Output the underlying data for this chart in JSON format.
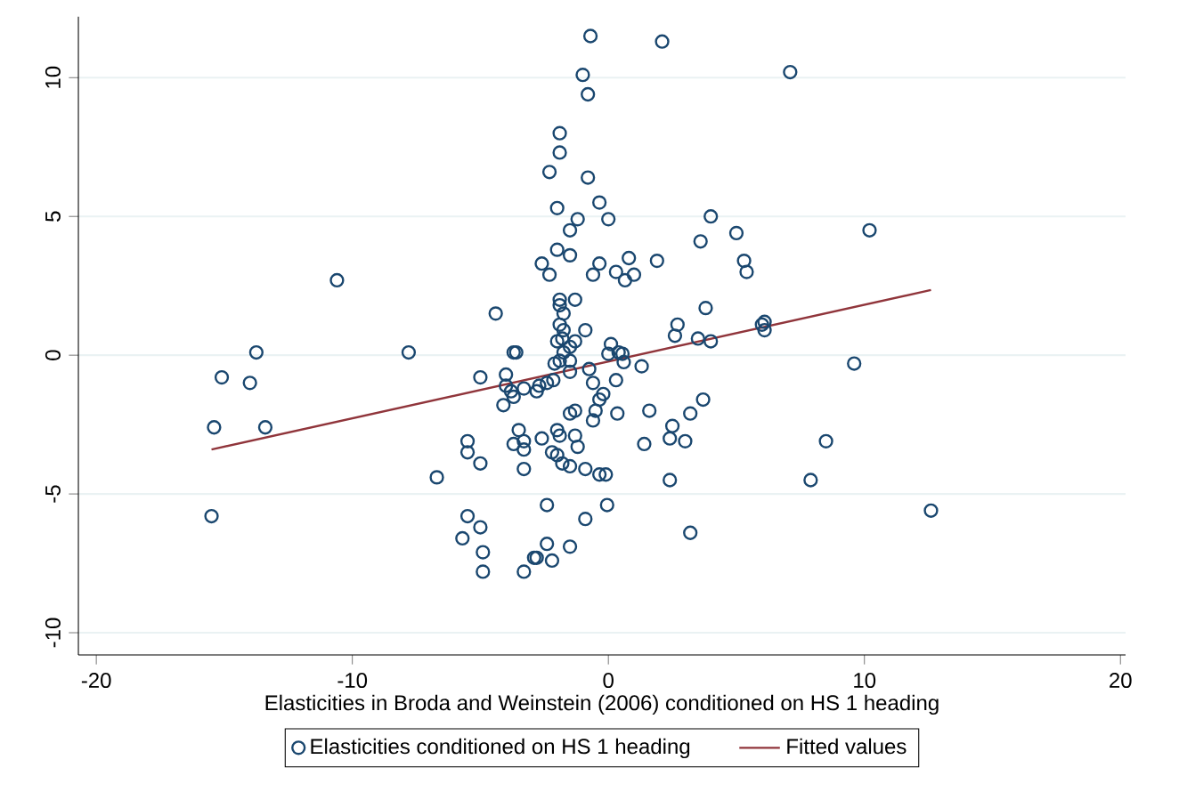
{
  "chart_data": {
    "type": "scatter",
    "xlabel": "Elasticities in Broda and Weinstein (2006) conditioned on HS 1 heading",
    "xlim": [
      -20.7,
      20.2
    ],
    "ylim": [
      -10.8,
      12.2
    ],
    "xticks": [
      -20,
      -10,
      0,
      10,
      20
    ],
    "yticks": [
      -10,
      -5,
      0,
      5,
      10
    ],
    "grid": "y",
    "legend": "bottom",
    "series": [
      {
        "name": "Elasticities conditioned on HS 1 heading",
        "color": "#1a476f",
        "marker": "circle",
        "x": [
          7.1,
          -0.7,
          2.1,
          -1.0,
          -0.8,
          -1.9,
          -1.9,
          -2.3,
          -0.8,
          -0.35,
          -2.0,
          0,
          -1.2,
          -1.5,
          4.0,
          5.0,
          3.6,
          10.2,
          -2.0,
          -1.5,
          -2.6,
          -0.35,
          0.8,
          1.9,
          -2.3,
          -0.6,
          0.3,
          1.0,
          0.65,
          5.3,
          5.4,
          -10.6,
          -4.4,
          -1.9,
          -1.3,
          -1.9,
          -1.75,
          3.8,
          6.0,
          6.1,
          6.1,
          -1.9,
          -1.75,
          -1.8,
          -1.3,
          -0.9,
          -1.5,
          2.7,
          2.6,
          3.5,
          4.0,
          0.1,
          0.4,
          0,
          -3.7,
          -7.8,
          -13.75,
          -15.1,
          -14.0,
          -15.4,
          -13.4,
          -15.5,
          -3.6,
          -5.0,
          -4.0,
          -4.0,
          -3.8,
          -3.7,
          -3.3,
          -4.1,
          -5.5,
          -5.5,
          -5.0,
          -6.7,
          -3.5,
          -3.3,
          -3.7,
          -3.3,
          -3.3,
          -5.5,
          -5.0,
          -5.7,
          -4.9,
          -4.9,
          -3.3,
          -2.9,
          -2.0,
          -1.75,
          -2.1,
          -1.9,
          -1.5,
          -1.5,
          -0.75,
          0.55,
          0.6,
          1.3,
          0.3,
          -0.6,
          -2.15,
          -2.7,
          -2.8,
          -2.4,
          -0.2,
          -0.35,
          -0.5,
          -0.6,
          -1.5,
          -1.3,
          0.35,
          1.6,
          3.2,
          3.7,
          2.5,
          2.4,
          3.0,
          1.4,
          -2.6,
          -2.0,
          -1.9,
          -1.3,
          -1.2,
          -2.2,
          -2.0,
          -1.8,
          -1.5,
          -0.9,
          -0.35,
          -0.1,
          2.4,
          7.9,
          -2.4,
          -0.05,
          -0.9,
          3.2,
          -2.4,
          -1.5,
          -2.8,
          -2.2,
          9.6,
          8.5,
          12.6
        ],
        "values": [
          10.2,
          11.5,
          11.3,
          10.1,
          9.4,
          8.0,
          7.3,
          6.6,
          6.4,
          5.5,
          5.3,
          4.9,
          4.9,
          4.5,
          5.0,
          4.4,
          4.1,
          4.5,
          3.8,
          3.6,
          3.3,
          3.3,
          3.5,
          3.4,
          2.9,
          2.9,
          3.0,
          2.9,
          2.7,
          3.4,
          3.0,
          2.7,
          1.5,
          2.0,
          2.0,
          1.8,
          1.5,
          1.7,
          1.1,
          0.9,
          1.2,
          1.1,
          0.9,
          0.6,
          0.5,
          0.9,
          0.3,
          1.1,
          0.7,
          0.6,
          0.5,
          0.4,
          0.1,
          0.05,
          0.1,
          0.1,
          0.1,
          -0.8,
          -1.0,
          -2.6,
          -2.6,
          -5.8,
          0.1,
          -0.8,
          -0.7,
          -1.1,
          -1.3,
          -1.5,
          -1.2,
          -1.8,
          -3.1,
          -3.5,
          -3.9,
          -4.4,
          -2.7,
          -3.1,
          -3.2,
          -3.4,
          -4.1,
          -5.8,
          -6.2,
          -6.6,
          -7.1,
          -7.8,
          -7.8,
          -7.3,
          0.5,
          0.1,
          -0.3,
          -0.2,
          -0.2,
          -0.6,
          -0.5,
          0.05,
          -0.25,
          -0.4,
          -0.9,
          -1.0,
          -0.9,
          -1.1,
          -1.3,
          -1.0,
          -1.4,
          -1.6,
          -2.0,
          -2.35,
          -2.1,
          -2.0,
          -2.1,
          -2.0,
          -2.1,
          -1.6,
          -2.55,
          -3.0,
          -3.1,
          -3.2,
          -3.0,
          -2.7,
          -2.9,
          -2.9,
          -3.3,
          -3.5,
          -3.6,
          -3.9,
          -4.0,
          -4.1,
          -4.3,
          -4.3,
          -4.5,
          -4.5,
          -5.4,
          -5.4,
          -5.9,
          -6.4,
          -6.8,
          -6.9,
          -7.3,
          -7.4,
          -0.3,
          -3.1,
          -5.6
        ]
      },
      {
        "name": "Fitted values",
        "type": "line",
        "color": "#90353b",
        "marker": "none",
        "line_style": "solid",
        "x": [
          -15.5,
          12.6
        ],
        "values": [
          -3.4,
          2.35
        ]
      }
    ]
  }
}
